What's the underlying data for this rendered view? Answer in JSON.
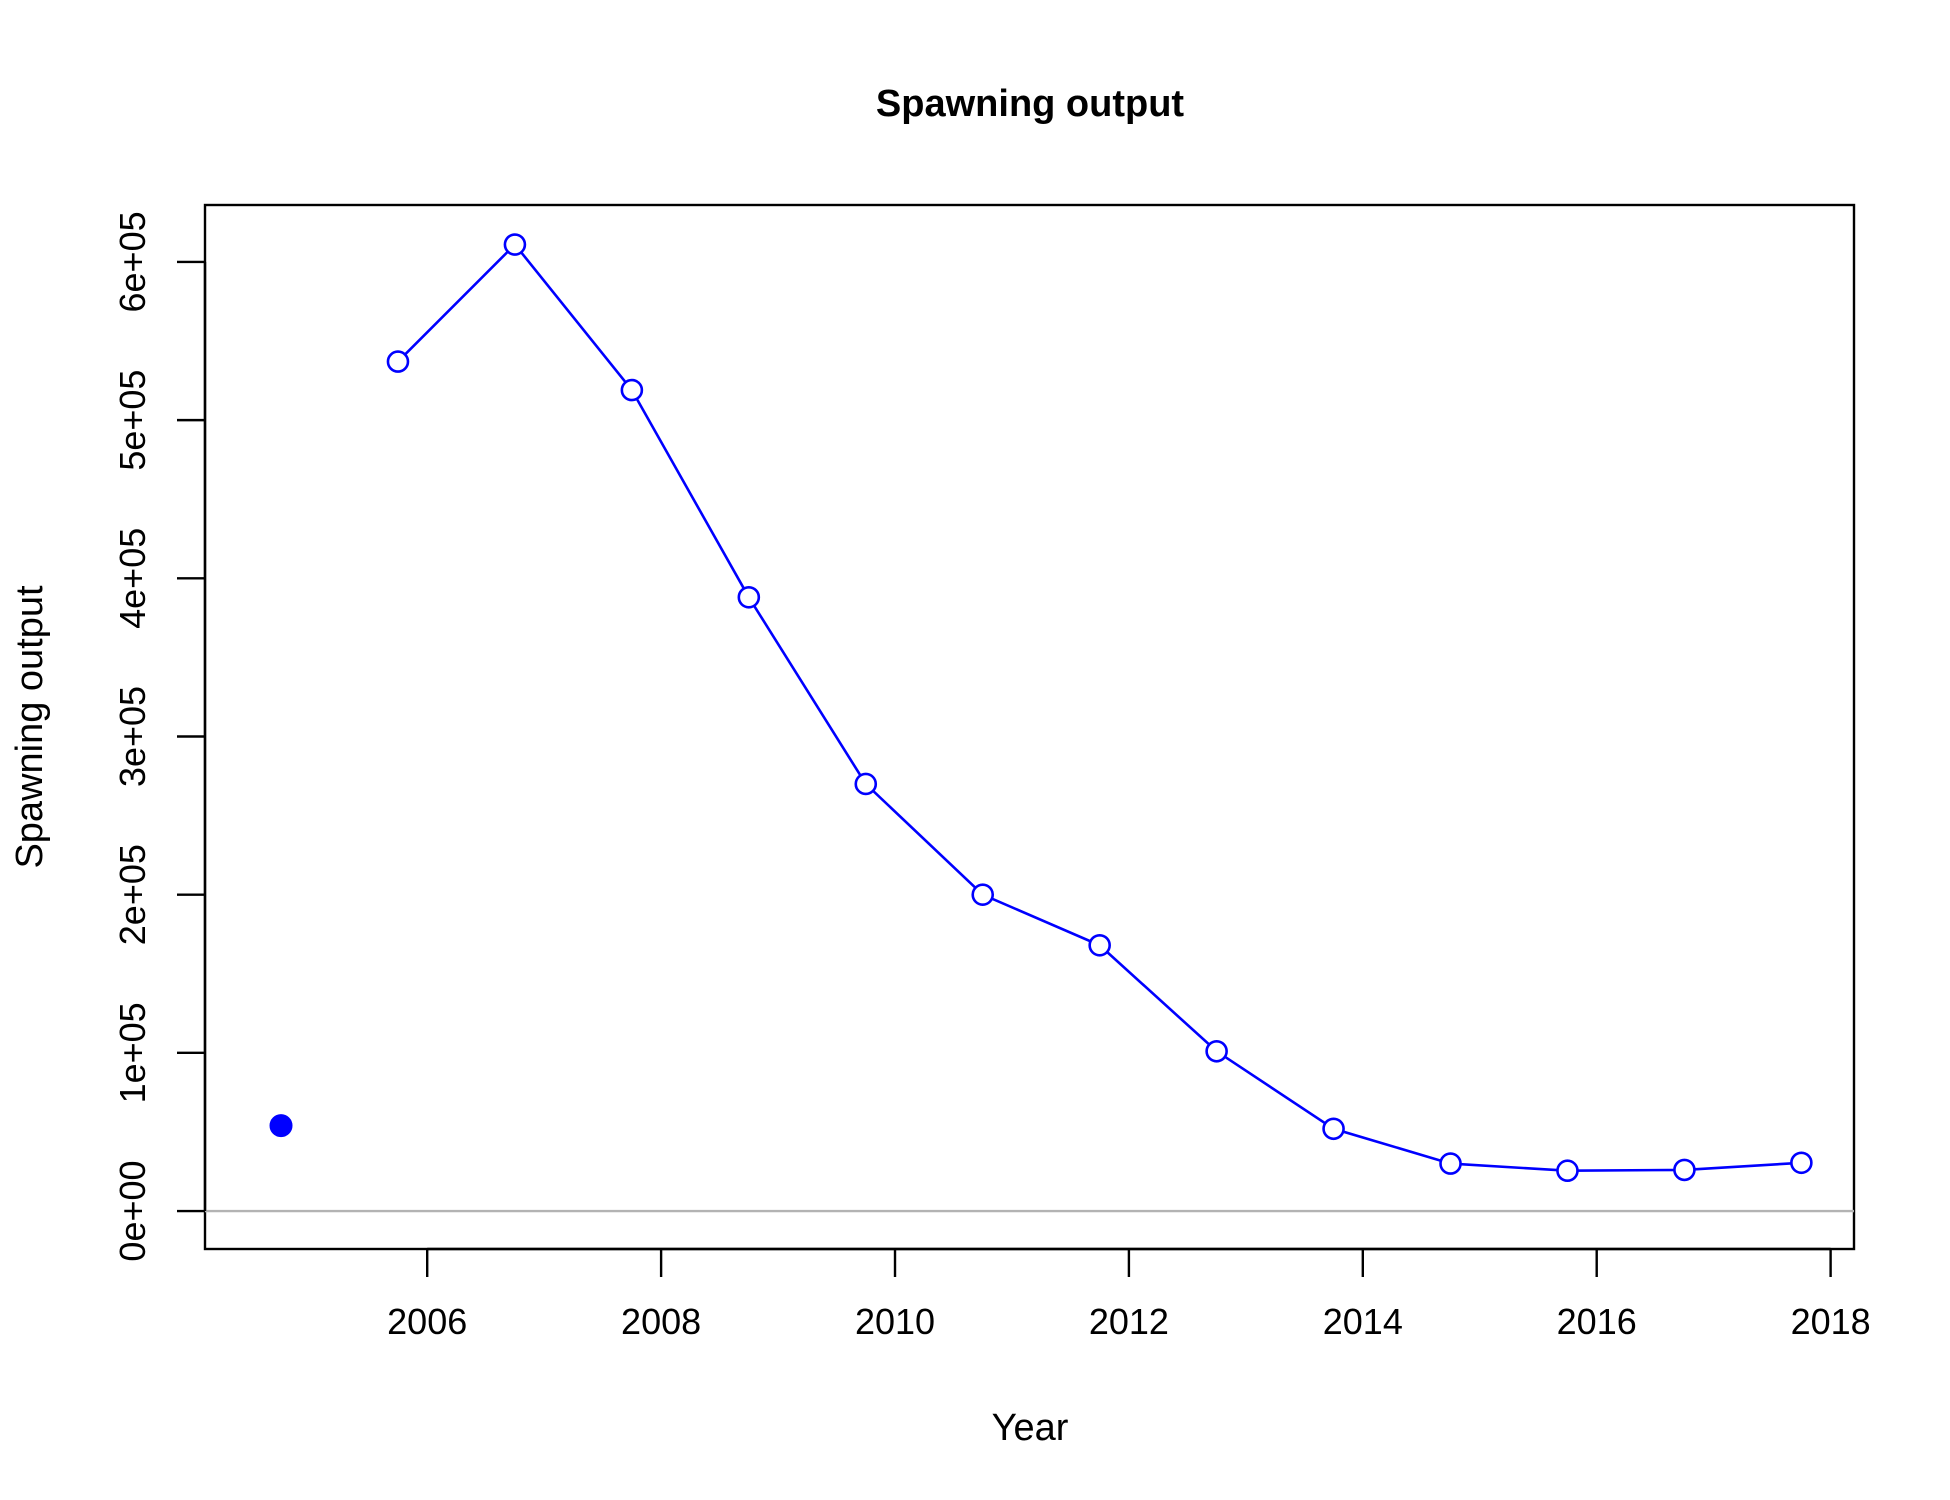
{
  "chart_data": {
    "type": "line",
    "title": "Spawning output",
    "xlabel": "Year",
    "ylabel": "Spawning output",
    "xlim": [
      2004.1,
      2018.2
    ],
    "ylim": [
      -24000,
      636000
    ],
    "x_ticks": [
      {
        "value": 2006,
        "label": "2006"
      },
      {
        "value": 2008,
        "label": "2008"
      },
      {
        "value": 2010,
        "label": "2010"
      },
      {
        "value": 2012,
        "label": "2012"
      },
      {
        "value": 2014,
        "label": "2014"
      },
      {
        "value": 2016,
        "label": "2016"
      },
      {
        "value": 2018,
        "label": "2018"
      }
    ],
    "y_ticks": [
      {
        "value": 0,
        "label": "0e+00"
      },
      {
        "value": 100000,
        "label": "1e+05"
      },
      {
        "value": 200000,
        "label": "2e+05"
      },
      {
        "value": 300000,
        "label": "3e+05"
      },
      {
        "value": 400000,
        "label": "4e+05"
      },
      {
        "value": 500000,
        "label": "5e+05"
      },
      {
        "value": 600000,
        "label": "6e+05"
      }
    ],
    "reference_line": {
      "y": 0,
      "color": "#b3b3b3"
    },
    "series": [
      {
        "style": "filled-point",
        "color": "#0000ff",
        "points": [
          {
            "x": 2004.75,
            "y": 54000
          }
        ]
      },
      {
        "style": "line-open-circles",
        "color": "#0000ff",
        "points": [
          {
            "x": 2005.75,
            "y": 537000
          },
          {
            "x": 2006.75,
            "y": 611000
          },
          {
            "x": 2007.75,
            "y": 519000
          },
          {
            "x": 2008.75,
            "y": 388000
          },
          {
            "x": 2009.75,
            "y": 270000
          },
          {
            "x": 2010.75,
            "y": 200000
          },
          {
            "x": 2011.75,
            "y": 168000
          },
          {
            "x": 2012.75,
            "y": 101000
          },
          {
            "x": 2013.75,
            "y": 52000
          },
          {
            "x": 2014.75,
            "y": 30000
          },
          {
            "x": 2015.75,
            "y": 25500
          },
          {
            "x": 2016.75,
            "y": 26000
          },
          {
            "x": 2017.75,
            "y": 30500
          }
        ]
      }
    ],
    "grid": false,
    "legend": "none"
  }
}
